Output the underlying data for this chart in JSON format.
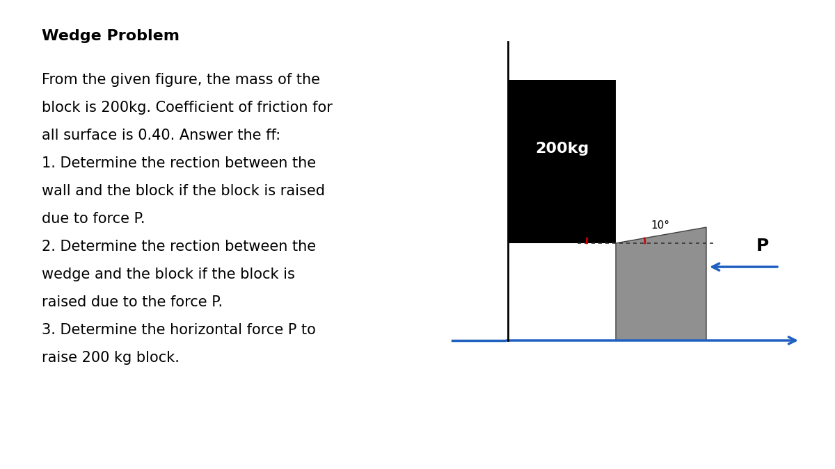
{
  "title": "Wedge Problem",
  "background_color": "#ffffff",
  "text_lines": [
    "From the given figure, the mass of the",
    "block is 200kg. Coefficient of friction for",
    "all surface is 0.40. Answer the ff:",
    "1. Determine the rection between the",
    "wall and the block if the block is raised",
    "due to force P.",
    "2. Determine the rection between the",
    "wedge and the block if the block is",
    "raised due to the force P.",
    "3. Determine the horizontal force P to",
    "raise 200 kg block."
  ],
  "title_fontsize": 16,
  "text_fontsize": 15,
  "block_color": "#000000",
  "wedge_color": "#909090",
  "block_label": "200kg",
  "angle_label": "10°",
  "force_label": "P",
  "arrow_color": "#2060c0",
  "angle_arc_color": "#cc0000",
  "wall_color": "#2060c0",
  "floor_color": "#2060c0"
}
